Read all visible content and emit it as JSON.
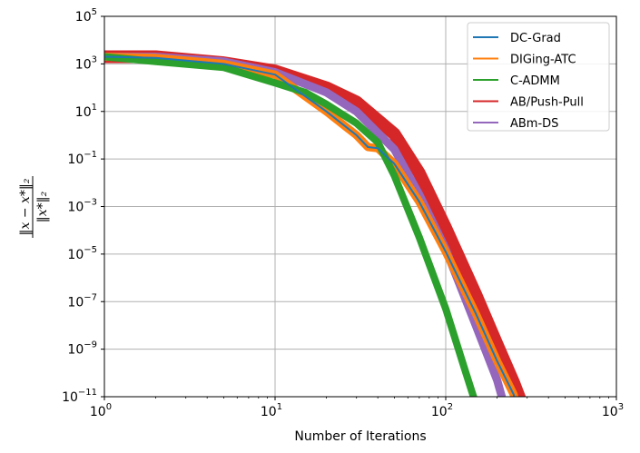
{
  "chart_data": {
    "type": "line",
    "xscale": "log",
    "yscale": "log",
    "xlim": [
      1,
      1000
    ],
    "ylim": [
      1e-11,
      100000
    ],
    "grid": true,
    "xlabel": "Number of Iterations",
    "ylabel": "‖x − x*‖₂ / ‖x*‖₂",
    "xticks": [
      {
        "base": "10",
        "exp": "0",
        "value": 1
      },
      {
        "base": "10",
        "exp": "1",
        "value": 10
      },
      {
        "base": "10",
        "exp": "2",
        "value": 100
      },
      {
        "base": "10",
        "exp": "3",
        "value": 1000
      }
    ],
    "yticks": [
      {
        "base": "10",
        "exp": "5",
        "value": 5
      },
      {
        "base": "10",
        "exp": "3",
        "value": 3
      },
      {
        "base": "10",
        "exp": "1",
        "value": 1
      },
      {
        "base": "10",
        "exp": "−1",
        "value": -1
      },
      {
        "base": "10",
        "exp": "−3",
        "value": -3
      },
      {
        "base": "10",
        "exp": "−5",
        "value": -5
      },
      {
        "base": "10",
        "exp": "−7",
        "value": -7
      },
      {
        "base": "10",
        "exp": "−9",
        "value": -9
      },
      {
        "base": "10",
        "exp": "−11",
        "value": -11
      }
    ],
    "legend_position": "top-right",
    "series": [
      {
        "name": "DC-Grad",
        "color": "#1f77b4",
        "band_width": 2,
        "points": [
          [
            1,
            3.3
          ],
          [
            2,
            3.25
          ],
          [
            5,
            3.0
          ],
          [
            10,
            2.55
          ],
          [
            20,
            1.0
          ],
          [
            30,
            0.0
          ],
          [
            35,
            -0.5
          ],
          [
            40,
            -0.55
          ],
          [
            50,
            -1.2
          ],
          [
            70,
            -2.8
          ],
          [
            100,
            -4.9
          ],
          [
            150,
            -7.5
          ],
          [
            200,
            -9.5
          ],
          [
            250,
            -10.9
          ],
          [
            262,
            -11.5
          ]
        ]
      },
      {
        "name": "DIGing-ATC",
        "color": "#ff7f0e",
        "band_width": 9,
        "points": [
          [
            1,
            3.3
          ],
          [
            2,
            3.25
          ],
          [
            5,
            3.0
          ],
          [
            10,
            2.55
          ],
          [
            20,
            1.0
          ],
          [
            30,
            0.0
          ],
          [
            35,
            -0.5
          ],
          [
            40,
            -0.55
          ],
          [
            50,
            -1.2
          ],
          [
            70,
            -2.8
          ],
          [
            100,
            -4.9
          ],
          [
            150,
            -7.5
          ],
          [
            200,
            -9.5
          ],
          [
            250,
            -10.9
          ],
          [
            262,
            -11.5
          ]
        ]
      },
      {
        "name": "C-ADMM",
        "color": "#2ca02c",
        "band_width": 8,
        "points": [
          [
            1,
            3.3
          ],
          [
            2,
            3.1
          ],
          [
            5,
            2.85
          ],
          [
            10,
            2.2
          ],
          [
            15,
            1.8
          ],
          [
            20,
            1.3
          ],
          [
            30,
            0.5
          ],
          [
            40,
            -0.3
          ],
          [
            50,
            -1.7
          ],
          [
            70,
            -4.3
          ],
          [
            100,
            -7.3
          ],
          [
            130,
            -9.9
          ],
          [
            150,
            -11.3
          ],
          [
            155,
            -11.6
          ]
        ]
      },
      {
        "name": "AB/Push-Pull",
        "color": "#d62728",
        "band_width": 14,
        "points": [
          [
            1,
            3.3
          ],
          [
            2,
            3.3
          ],
          [
            5,
            3.05
          ],
          [
            10,
            2.7
          ],
          [
            20,
            2.0
          ],
          [
            30,
            1.4
          ],
          [
            50,
            0.05
          ],
          [
            70,
            -1.6
          ],
          [
            100,
            -3.9
          ],
          [
            150,
            -6.7
          ],
          [
            200,
            -8.8
          ],
          [
            250,
            -10.4
          ],
          [
            290,
            -11.6
          ]
        ]
      },
      {
        "name": "ABm-DS",
        "color": "#9467bd",
        "band_width": 9,
        "points": [
          [
            1,
            3.3
          ],
          [
            2,
            3.3
          ],
          [
            5,
            3.1
          ],
          [
            10,
            2.65
          ],
          [
            20,
            1.8
          ],
          [
            30,
            1.0
          ],
          [
            50,
            -0.6
          ],
          [
            70,
            -2.5
          ],
          [
            100,
            -4.8
          ],
          [
            150,
            -8.0
          ],
          [
            200,
            -10.3
          ],
          [
            225,
            -11.6
          ]
        ]
      }
    ]
  }
}
